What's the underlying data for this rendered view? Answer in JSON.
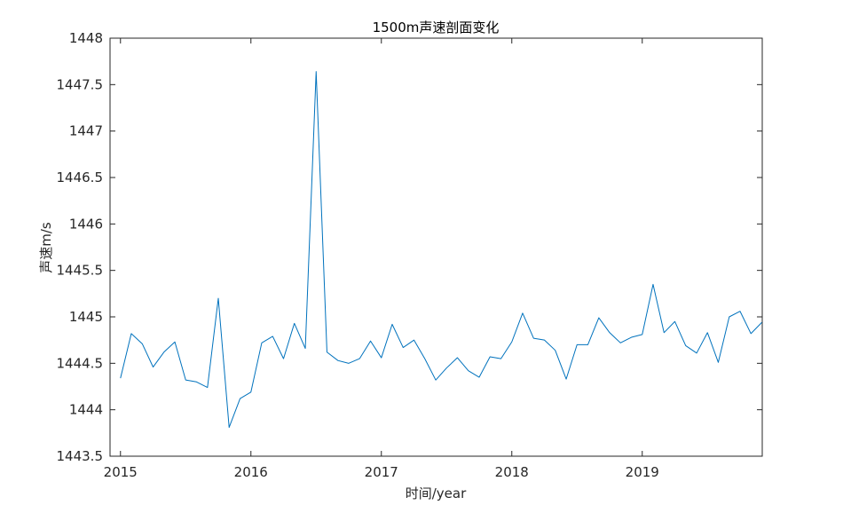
{
  "chart_data": {
    "type": "line",
    "title": "1500m声速剖面变化",
    "xlabel": "时间/year",
    "ylabel": "声速m/s",
    "xlim": [
      2014.92,
      2019.92
    ],
    "ylim": [
      1443.5,
      1448
    ],
    "x_ticks": [
      2015,
      2016,
      2017,
      2018,
      2019
    ],
    "x_tick_labels": [
      "2015",
      "2016",
      "2017",
      "2018",
      "2019"
    ],
    "y_ticks": [
      1443.5,
      1444,
      1444.5,
      1445,
      1445.5,
      1446,
      1446.5,
      1447,
      1447.5,
      1448
    ],
    "y_tick_labels": [
      "1443.5",
      "1444",
      "1444.5",
      "1445",
      "1445.5",
      "1446",
      "1446.5",
      "1447",
      "1447.5",
      "1448"
    ],
    "grid": false,
    "line_color": "#0072BD",
    "series": [
      {
        "x": [
          2015.0,
          2015.083,
          2015.167,
          2015.25,
          2015.333,
          2015.417,
          2015.5,
          2015.583,
          2015.667,
          2015.75,
          2015.833,
          2015.917,
          2016.0,
          2016.083,
          2016.167,
          2016.25,
          2016.333,
          2016.417,
          2016.5,
          2016.583,
          2016.667,
          2016.75,
          2016.833,
          2016.917,
          2017.0,
          2017.083,
          2017.167,
          2017.25,
          2017.333,
          2017.417,
          2017.5,
          2017.583,
          2017.667,
          2017.75,
          2017.833,
          2017.917,
          2018.0,
          2018.083,
          2018.167,
          2018.25,
          2018.333,
          2018.417,
          2018.5,
          2018.583,
          2018.667,
          2018.75,
          2018.833,
          2018.917,
          2019.0,
          2019.083,
          2019.167,
          2019.25,
          2019.333,
          2019.417,
          2019.5,
          2019.583,
          2019.667,
          2019.75,
          2019.833,
          2019.917
        ],
        "values": [
          1444.34,
          1444.82,
          1444.71,
          1444.46,
          1444.62,
          1444.73,
          1444.32,
          1444.3,
          1444.24,
          1445.2,
          1443.81,
          1444.12,
          1444.19,
          1444.72,
          1444.79,
          1444.55,
          1444.93,
          1444.66,
          1447.64,
          1444.62,
          1444.53,
          1444.5,
          1444.55,
          1444.74,
          1444.56,
          1444.92,
          1444.67,
          1444.75,
          1444.55,
          1444.32,
          1444.45,
          1444.56,
          1444.42,
          1444.35,
          1444.57,
          1444.55,
          1444.73,
          1445.04,
          1444.77,
          1444.75,
          1444.64,
          1444.33,
          1444.7,
          1444.7,
          1444.99,
          1444.83,
          1444.72,
          1444.78,
          1444.81,
          1445.35,
          1444.83,
          1444.95,
          1444.69,
          1444.61,
          1444.83,
          1444.51,
          1445.0,
          1445.06,
          1444.82,
          1444.94
        ]
      }
    ]
  }
}
